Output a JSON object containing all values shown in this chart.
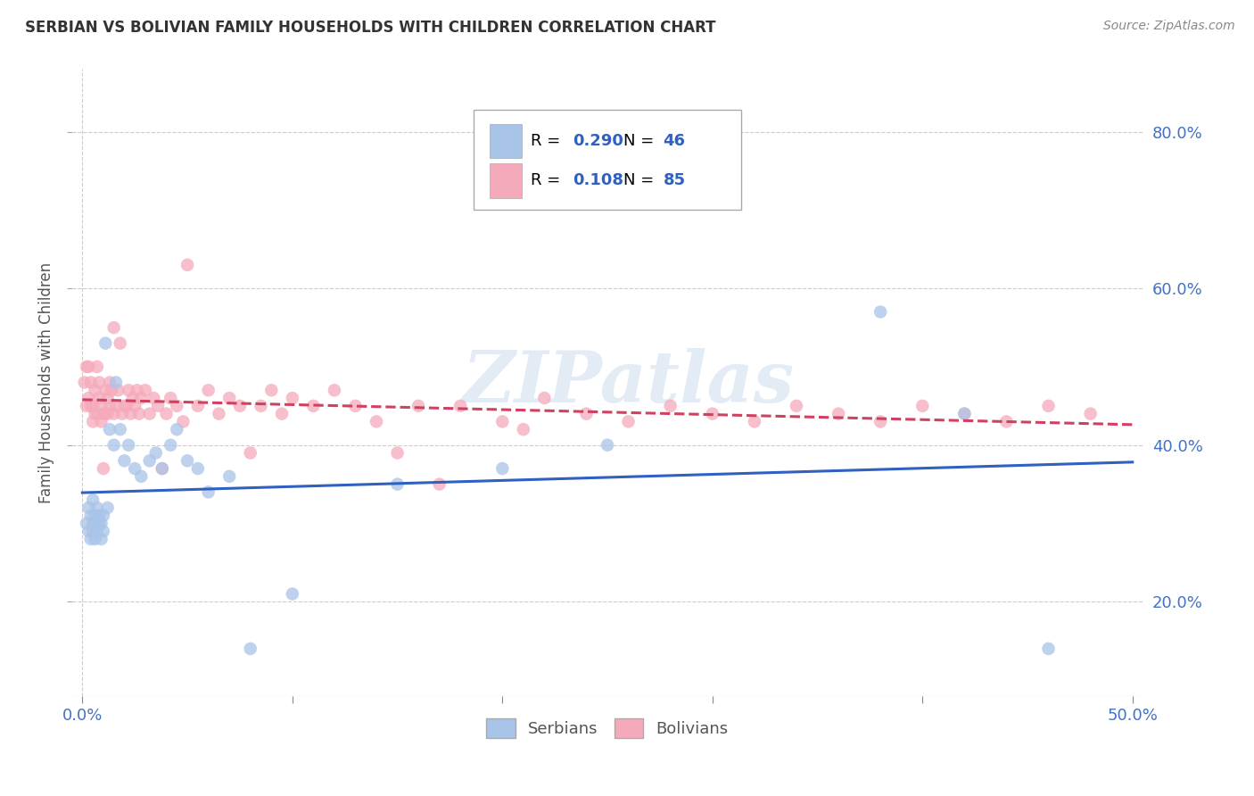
{
  "title": "SERBIAN VS BOLIVIAN FAMILY HOUSEHOLDS WITH CHILDREN CORRELATION CHART",
  "source": "Source: ZipAtlas.com",
  "ylabel": "Family Households with Children",
  "xlabel": "",
  "xlim": [
    -0.005,
    0.505
  ],
  "ylim": [
    0.08,
    0.88
  ],
  "yticks": [
    0.2,
    0.4,
    0.6,
    0.8
  ],
  "ytick_labels": [
    "20.0%",
    "40.0%",
    "60.0%",
    "80.0%"
  ],
  "xtick_positions": [
    0.0,
    0.1,
    0.2,
    0.3,
    0.4,
    0.5
  ],
  "xtick_labels_shown": [
    "0.0%",
    "",
    "",
    "",
    "",
    "50.0%"
  ],
  "serbian_R": 0.29,
  "serbian_N": 46,
  "bolivian_R": 0.108,
  "bolivian_N": 85,
  "serbian_color": "#a8c4e8",
  "bolivian_color": "#f5aabb",
  "serbian_line_color": "#3060c0",
  "bolivian_line_color": "#d04060",
  "watermark": "ZIPatlas",
  "background_color": "#ffffff",
  "grid_color": "#cccccc",
  "serbian_x": [
    0.002,
    0.003,
    0.003,
    0.004,
    0.004,
    0.005,
    0.005,
    0.005,
    0.006,
    0.006,
    0.006,
    0.007,
    0.007,
    0.008,
    0.008,
    0.009,
    0.009,
    0.01,
    0.01,
    0.011,
    0.012,
    0.013,
    0.015,
    0.016,
    0.018,
    0.02,
    0.022,
    0.025,
    0.028,
    0.032,
    0.035,
    0.038,
    0.042,
    0.045,
    0.05,
    0.055,
    0.06,
    0.07,
    0.08,
    0.1,
    0.15,
    0.2,
    0.25,
    0.38,
    0.42,
    0.46
  ],
  "serbian_y": [
    0.3,
    0.29,
    0.32,
    0.31,
    0.28,
    0.3,
    0.33,
    0.29,
    0.28,
    0.31,
    0.3,
    0.32,
    0.29,
    0.3,
    0.31,
    0.28,
    0.3,
    0.31,
    0.29,
    0.53,
    0.32,
    0.42,
    0.4,
    0.48,
    0.42,
    0.38,
    0.4,
    0.37,
    0.36,
    0.38,
    0.39,
    0.37,
    0.4,
    0.42,
    0.38,
    0.37,
    0.34,
    0.36,
    0.14,
    0.21,
    0.35,
    0.37,
    0.4,
    0.57,
    0.44,
    0.14
  ],
  "bolivian_x": [
    0.001,
    0.002,
    0.002,
    0.003,
    0.003,
    0.004,
    0.004,
    0.005,
    0.005,
    0.006,
    0.006,
    0.007,
    0.007,
    0.008,
    0.008,
    0.009,
    0.009,
    0.01,
    0.01,
    0.011,
    0.011,
    0.012,
    0.012,
    0.013,
    0.013,
    0.014,
    0.015,
    0.015,
    0.016,
    0.017,
    0.018,
    0.019,
    0.02,
    0.021,
    0.022,
    0.023,
    0.024,
    0.025,
    0.026,
    0.027,
    0.028,
    0.03,
    0.032,
    0.034,
    0.036,
    0.038,
    0.04,
    0.042,
    0.045,
    0.048,
    0.05,
    0.055,
    0.06,
    0.065,
    0.07,
    0.075,
    0.08,
    0.085,
    0.09,
    0.095,
    0.1,
    0.11,
    0.12,
    0.13,
    0.14,
    0.15,
    0.16,
    0.17,
    0.18,
    0.2,
    0.21,
    0.22,
    0.24,
    0.26,
    0.28,
    0.3,
    0.32,
    0.34,
    0.36,
    0.38,
    0.4,
    0.42,
    0.44,
    0.46,
    0.48
  ],
  "bolivian_y": [
    0.48,
    0.45,
    0.5,
    0.5,
    0.46,
    0.45,
    0.48,
    0.45,
    0.43,
    0.44,
    0.47,
    0.44,
    0.5,
    0.46,
    0.48,
    0.43,
    0.45,
    0.37,
    0.44,
    0.44,
    0.47,
    0.44,
    0.46,
    0.48,
    0.45,
    0.47,
    0.44,
    0.55,
    0.45,
    0.47,
    0.53,
    0.44,
    0.45,
    0.45,
    0.47,
    0.44,
    0.46,
    0.45,
    0.47,
    0.44,
    0.46,
    0.47,
    0.44,
    0.46,
    0.45,
    0.37,
    0.44,
    0.46,
    0.45,
    0.43,
    0.63,
    0.45,
    0.47,
    0.44,
    0.46,
    0.45,
    0.39,
    0.45,
    0.47,
    0.44,
    0.46,
    0.45,
    0.47,
    0.45,
    0.43,
    0.39,
    0.45,
    0.35,
    0.45,
    0.43,
    0.42,
    0.46,
    0.44,
    0.43,
    0.45,
    0.44,
    0.43,
    0.45,
    0.44,
    0.43,
    0.45,
    0.44,
    0.43,
    0.45,
    0.44
  ]
}
